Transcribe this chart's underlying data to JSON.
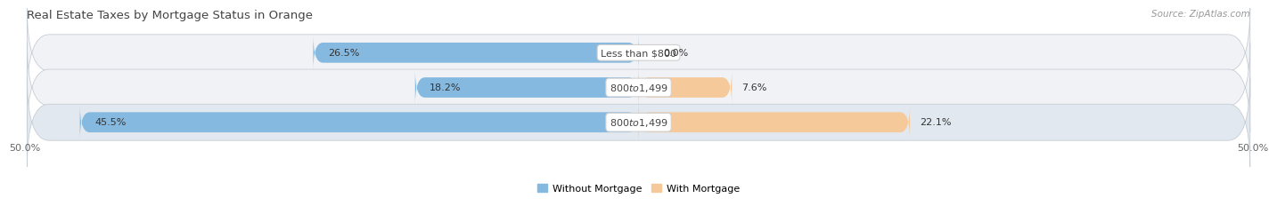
{
  "title": "Real Estate Taxes by Mortgage Status in Orange",
  "source": "Source: ZipAtlas.com",
  "categories": [
    "Less than $800",
    "$800 to $1,499",
    "$800 to $1,499"
  ],
  "without_mortgage": [
    26.5,
    18.2,
    45.5
  ],
  "with_mortgage": [
    0.0,
    7.6,
    22.1
  ],
  "color_without": "#86b9e0",
  "color_with": "#f5c99a",
  "color_without_dark": "#5a9bc7",
  "color_with_dark": "#e8a060",
  "xlim": [
    -50,
    50
  ],
  "xticklabels_left": "50.0%",
  "xticklabels_right": "50.0%",
  "bar_height": 0.58,
  "row_bg": [
    "#f0f2f5",
    "#f0f2f5",
    "#e2e8ef"
  ],
  "title_fontsize": 9.5,
  "label_fontsize": 8,
  "tick_fontsize": 8,
  "source_fontsize": 7.5,
  "legend_fontsize": 8
}
